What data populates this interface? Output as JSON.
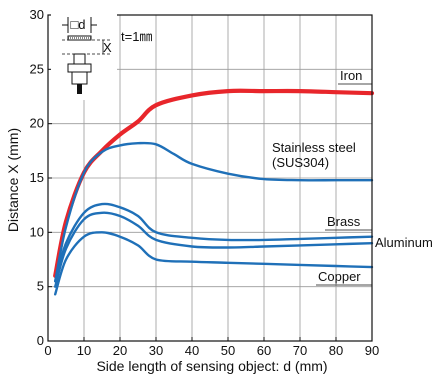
{
  "chart_data": {
    "type": "line",
    "xlabel": "Side length of sensing object: d (mm)",
    "ylabel": "Distance X (mm)",
    "xlim": [
      0,
      90
    ],
    "ylim": [
      0,
      30
    ],
    "x_ticks": [
      0,
      10,
      20,
      30,
      40,
      50,
      60,
      70,
      80,
      90
    ],
    "y_ticks": [
      0,
      5,
      10,
      15,
      20,
      25,
      30
    ],
    "grid": true,
    "legend": "none (series labeled directly on plot)",
    "inset_label": "t=1㎜",
    "inset_symbols": [
      "□d",
      "X"
    ],
    "series": [
      {
        "name": "Iron",
        "color": "#e8262b",
        "x": [
          2,
          5,
          10,
          15,
          20,
          25,
          30,
          40,
          50,
          60,
          70,
          80,
          90
        ],
        "y": [
          6,
          11,
          15.5,
          17.5,
          19,
          20.2,
          21.7,
          22.6,
          23,
          23,
          23,
          22.9,
          22.8
        ]
      },
      {
        "name": "Stainless steel (SUS304)",
        "color": "#1f70b8",
        "x": [
          2,
          5,
          10,
          15,
          20,
          25,
          30,
          35,
          40,
          50,
          60,
          70,
          80,
          90
        ],
        "y": [
          5.5,
          10.5,
          15.5,
          17.4,
          18.0,
          18.2,
          18.1,
          17.2,
          16.3,
          15.4,
          14.9,
          14.8,
          14.8,
          14.8
        ]
      },
      {
        "name": "Brass",
        "color": "#1f70b8",
        "x": [
          2,
          5,
          10,
          15,
          20,
          25,
          30,
          40,
          50,
          60,
          70,
          80,
          90
        ],
        "y": [
          5.5,
          9,
          11.8,
          12.6,
          12.3,
          11.5,
          10.0,
          9.5,
          9.3,
          9.3,
          9.4,
          9.5,
          9.6
        ]
      },
      {
        "name": "Aluminum",
        "color": "#1f70b8",
        "x": [
          2,
          5,
          10,
          15,
          20,
          25,
          30,
          40,
          50,
          60,
          70,
          80,
          90
        ],
        "y": [
          5,
          8.5,
          11.2,
          11.8,
          11.5,
          10.6,
          9.3,
          8.7,
          8.6,
          8.7,
          8.8,
          8.9,
          9.0
        ]
      },
      {
        "name": "Copper",
        "color": "#1f70b8",
        "x": [
          2,
          5,
          10,
          15,
          20,
          25,
          30,
          40,
          50,
          60,
          70,
          80,
          90
        ],
        "y": [
          4.3,
          7.5,
          9.6,
          10.0,
          9.6,
          8.8,
          7.5,
          7.3,
          7.2,
          7.1,
          7.0,
          6.9,
          6.8
        ]
      }
    ],
    "series_labels": [
      {
        "series": "Iron",
        "lines": [
          "Iron"
        ]
      },
      {
        "series": "Stainless steel (SUS304)",
        "lines": [
          "Stainless steel",
          "(SUS304)"
        ]
      },
      {
        "series": "Brass",
        "lines": [
          "Brass"
        ]
      },
      {
        "series": "Aluminum",
        "lines": [
          "Aluminum"
        ]
      },
      {
        "series": "Copper",
        "lines": [
          "Copper"
        ]
      }
    ]
  }
}
